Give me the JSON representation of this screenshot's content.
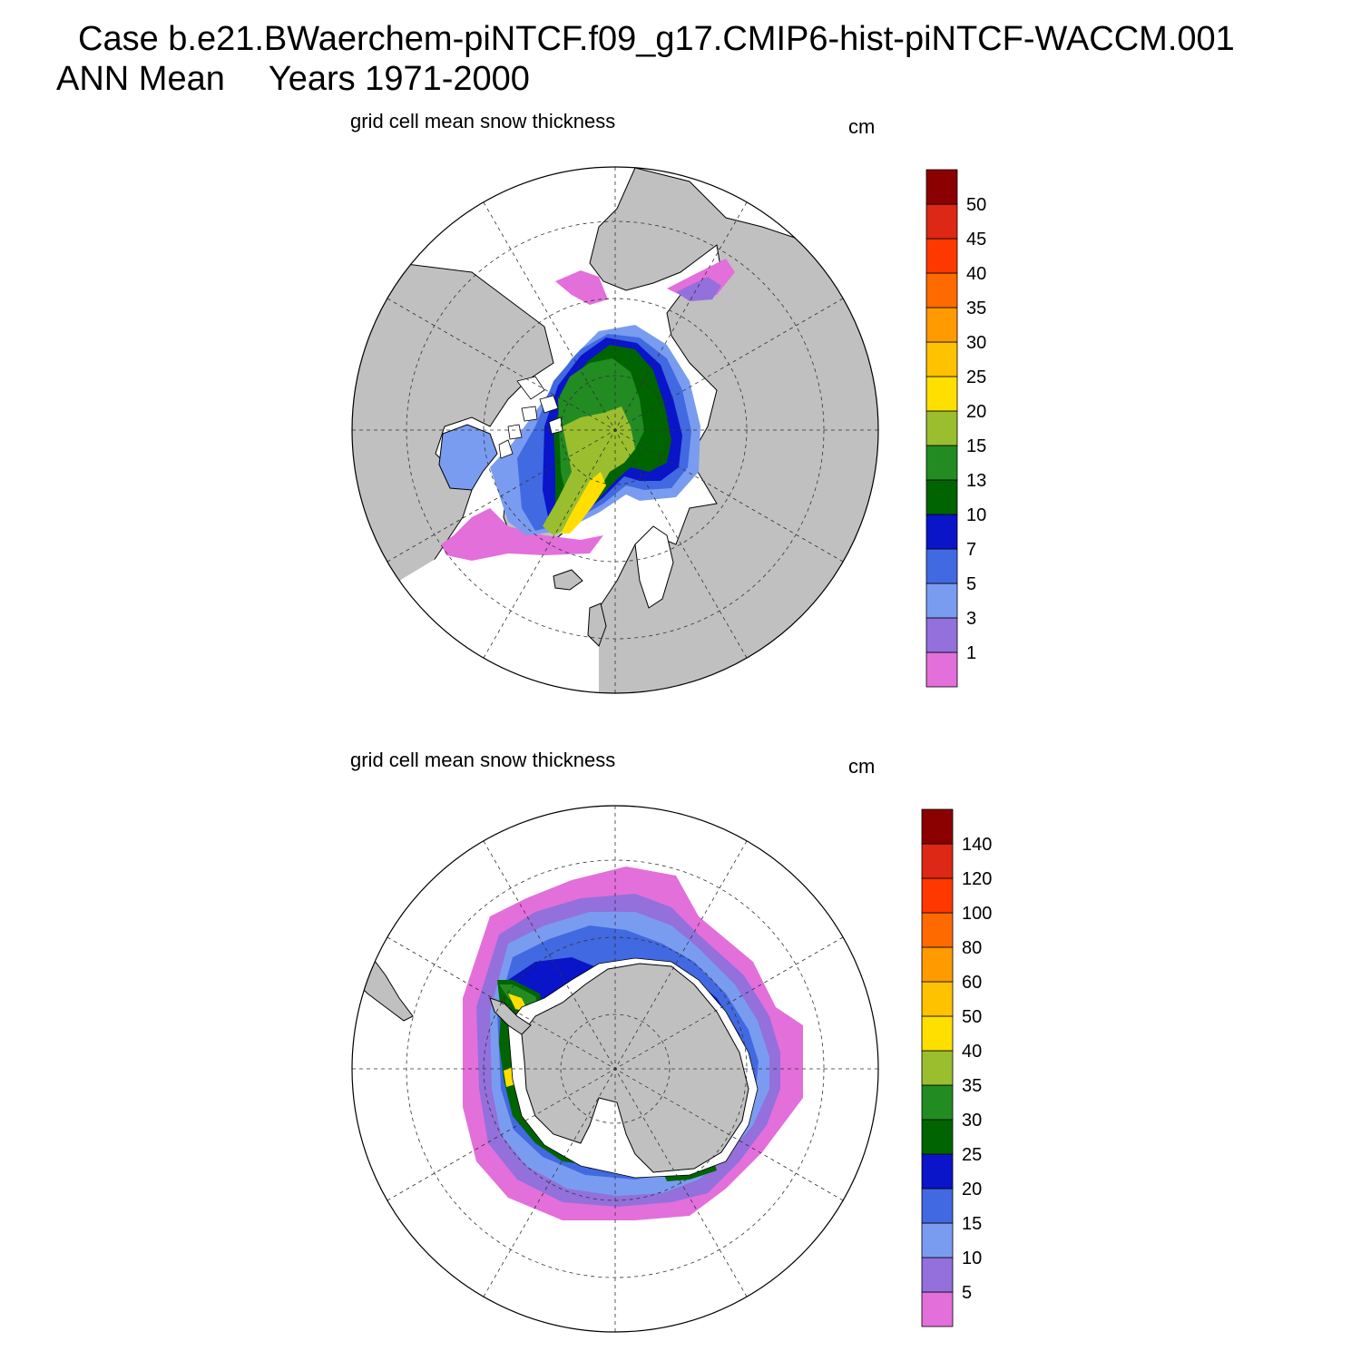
{
  "header": {
    "case_title": "Case b.e21.BWaerchem-piNTCF.f09_g17.CMIP6-hist-piNTCF-WACCM.001",
    "season": "ANN Mean",
    "years": "Years 1971-2000"
  },
  "panels": [
    {
      "id": "nh",
      "hemisphere": "north",
      "title": "grid cell mean snow thickness",
      "units": "cm",
      "colorbar": {
        "colors": [
          "#e36fdb",
          "#9370db",
          "#7a9cf0",
          "#4169e1",
          "#0a14c8",
          "#006400",
          "#228b22",
          "#9abe2e",
          "#ffdf00",
          "#ffc200",
          "#ff9a00",
          "#ff6a00",
          "#ff3800",
          "#dc2814",
          "#8b0000"
        ],
        "labels": [
          "1",
          "3",
          "5",
          "7",
          "10",
          "13",
          "15",
          "20",
          "25",
          "30",
          "35",
          "40",
          "45",
          "50"
        ]
      }
    },
    {
      "id": "sh",
      "hemisphere": "south",
      "title": "grid cell mean snow thickness",
      "units": "cm",
      "colorbar": {
        "colors": [
          "#e36fdb",
          "#9370db",
          "#7a9cf0",
          "#4169e1",
          "#0a14c8",
          "#006400",
          "#228b22",
          "#9abe2e",
          "#ffdf00",
          "#ffc200",
          "#ff9a00",
          "#ff6a00",
          "#ff3800",
          "#dc2814",
          "#8b0000"
        ],
        "labels": [
          "5",
          "10",
          "15",
          "20",
          "25",
          "30",
          "35",
          "40",
          "50",
          "60",
          "80",
          "100",
          "120",
          "140"
        ]
      }
    }
  ],
  "colors": {
    "land": "#c0c0c0",
    "ocean": "#ffffff",
    "coast": "#000000"
  }
}
